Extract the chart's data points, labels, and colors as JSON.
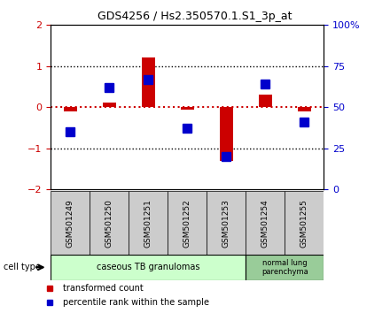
{
  "title": "GDS4256 / Hs2.350570.1.S1_3p_at",
  "samples": [
    "GSM501249",
    "GSM501250",
    "GSM501251",
    "GSM501252",
    "GSM501253",
    "GSM501254",
    "GSM501255"
  ],
  "red_values": [
    -0.1,
    0.12,
    1.2,
    -0.05,
    -1.3,
    0.3,
    -0.1
  ],
  "blue_values_pct": [
    35,
    62,
    67,
    37,
    20,
    64,
    41
  ],
  "ylim": [
    -2,
    2
  ],
  "yticks_left": [
    -2,
    -1,
    0,
    1,
    2
  ],
  "yticks_right_pct": [
    0,
    25,
    50,
    75,
    100
  ],
  "red_color": "#cc0000",
  "blue_color": "#0000cc",
  "dotted_red_color": "#cc0000",
  "group0_label": "caseous TB granulomas",
  "group0_count": 5,
  "group0_color": "#ccffcc",
  "group1_label": "normal lung\nparenchyma",
  "group1_count": 2,
  "group1_color": "#99cc99",
  "cell_type_label": "cell type",
  "legend_red": "transformed count",
  "legend_blue": "percentile rank within the sample",
  "bar_width": 0.35,
  "blue_marker_size": 7,
  "grid_lines": [
    -1,
    1
  ],
  "bg_color": "#ffffff",
  "plot_bg": "#ffffff",
  "label_area_color": "#cccccc"
}
